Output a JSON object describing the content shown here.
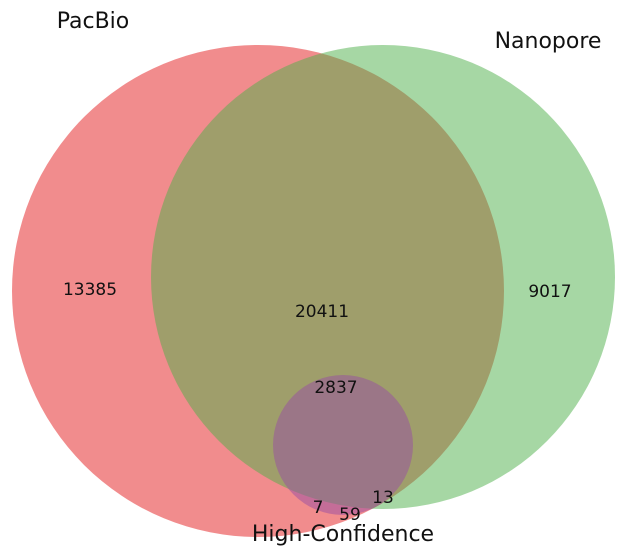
{
  "sets": [
    {
      "name": "PacBio",
      "color": "#e41a1c"
    },
    {
      "name": "Nanopore",
      "color": "#4daf4a"
    },
    {
      "name": "High-Confidence",
      "color": "#984ea3"
    }
  ],
  "regions": [
    {
      "value": 13385
    },
    {
      "value": 20411
    },
    {
      "value": 9017
    },
    {
      "value": 2837
    },
    {
      "value": 7
    },
    {
      "value": 59
    },
    {
      "value": 13
    }
  ]
}
